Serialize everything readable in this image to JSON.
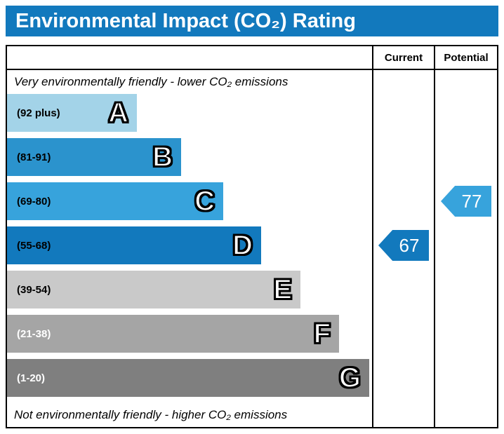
{
  "title": "Environmental Impact (CO₂) Rating",
  "header": {
    "current": "Current",
    "potential": "Potential"
  },
  "notes": {
    "top": "Very environmentally friendly - lower CO₂ emissions",
    "bottom": "Not environmentally friendly - higher CO₂ emissions"
  },
  "bands": [
    {
      "letter": "A",
      "range": "(92 plus)",
      "color": "#a3d3e8"
    },
    {
      "letter": "B",
      "range": "(81-91)",
      "color": "#2b93cd"
    },
    {
      "letter": "C",
      "range": "(69-80)",
      "color": "#37a3dc"
    },
    {
      "letter": "D",
      "range": "(55-68)",
      "color": "#1279bd"
    },
    {
      "letter": "E",
      "range": "(39-54)",
      "color": "#c9c9c9"
    },
    {
      "letter": "F",
      "range": "(21-38)",
      "color": "#a5a5a5"
    },
    {
      "letter": "G",
      "range": "(1-20)",
      "color": "#7f7f7f"
    }
  ],
  "ratings": {
    "current": {
      "value": "67",
      "band": "D",
      "color": "#1279bd"
    },
    "potential": {
      "value": "77",
      "band": "C",
      "color": "#37a3dc"
    }
  },
  "chart_data": {
    "type": "bar",
    "title": "Environmental Impact (CO₂) Rating",
    "categories": [
      "A",
      "B",
      "C",
      "D",
      "E",
      "F",
      "G"
    ],
    "band_ranges": [
      "92 plus",
      "81-91",
      "69-80",
      "55-68",
      "39-54",
      "21-38",
      "1-20"
    ],
    "band_colors": [
      "#a3d3e8",
      "#2b93cd",
      "#37a3dc",
      "#1279bd",
      "#c9c9c9",
      "#a5a5a5",
      "#7f7f7f"
    ],
    "series": [
      {
        "name": "Current",
        "value": 67,
        "band": "D"
      },
      {
        "name": "Potential",
        "value": 77,
        "band": "C"
      }
    ],
    "annotations": [
      "Very environmentally friendly - lower CO₂ emissions",
      "Not environmentally friendly - higher CO₂ emissions"
    ],
    "legend_position": "none",
    "grid": false
  }
}
